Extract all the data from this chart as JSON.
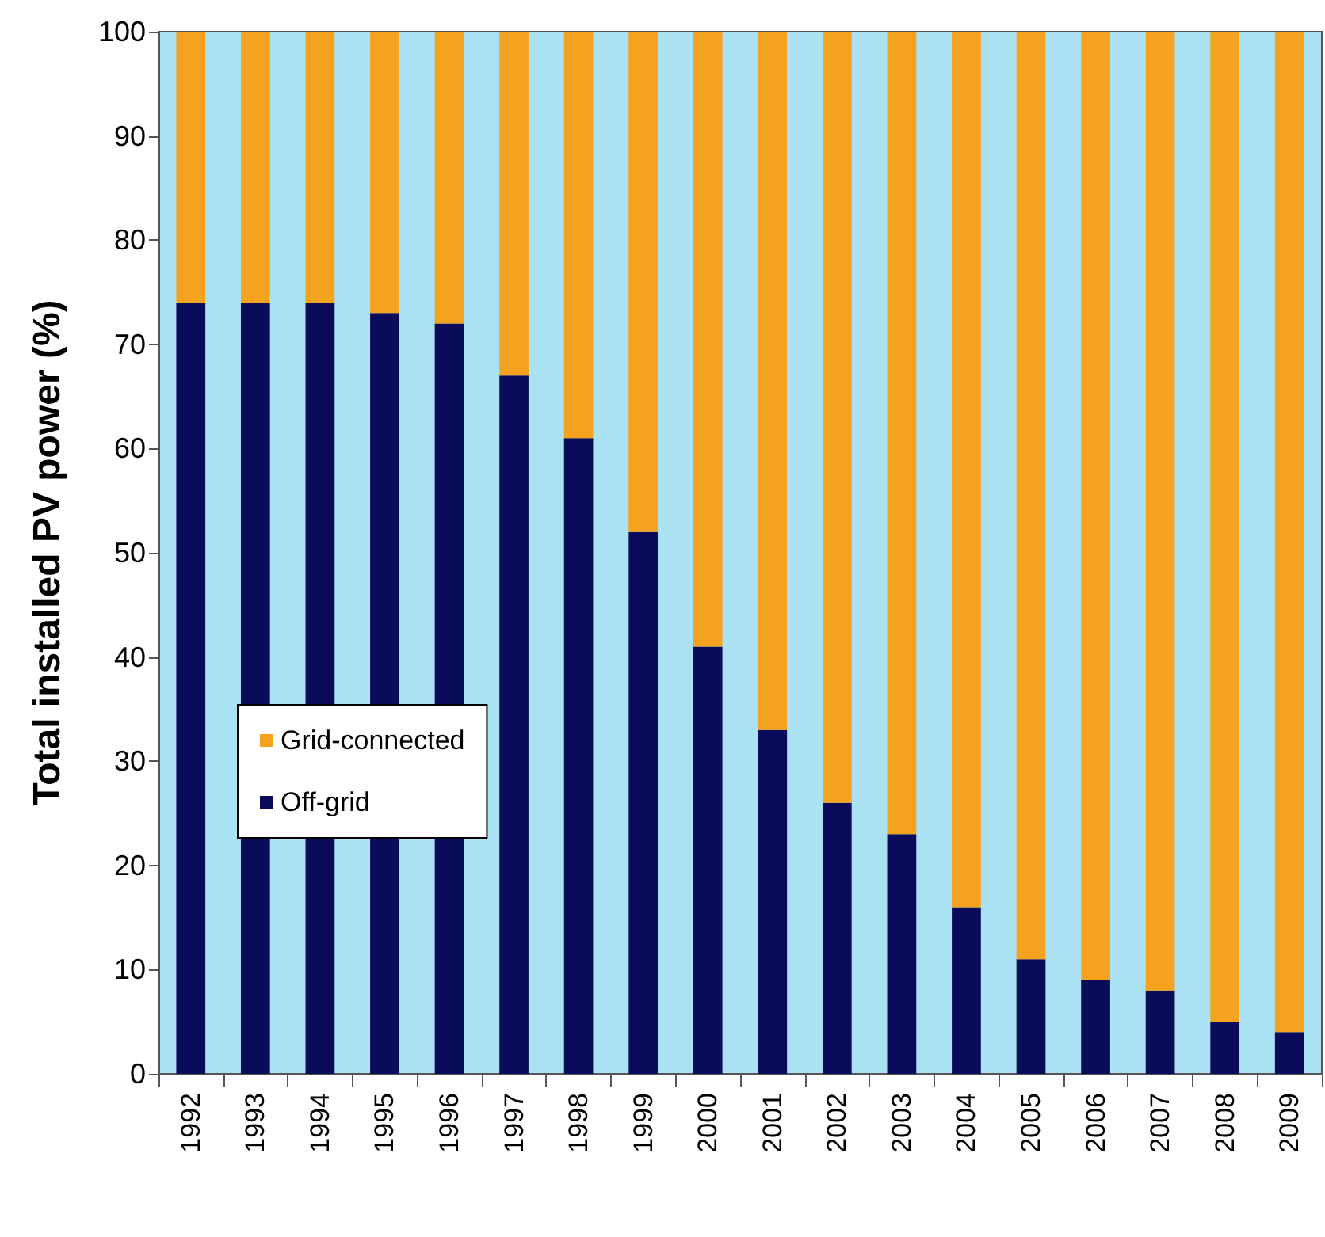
{
  "chart_data": {
    "type": "bar",
    "ylabel": "Total installed PV power (%)",
    "categories": [
      "1992",
      "1993",
      "1994",
      "1995",
      "1996",
      "1997",
      "1998",
      "1999",
      "2000",
      "2001",
      "2002",
      "2003",
      "2004",
      "2005",
      "2006",
      "2007",
      "2008",
      "2009"
    ],
    "stacked": true,
    "series": [
      {
        "name": "Off-grid",
        "color": "#0b0b5c",
        "values": [
          74,
          74,
          74,
          73,
          72,
          67,
          61,
          52,
          41,
          33,
          26,
          23,
          16,
          11,
          9,
          8,
          5,
          4
        ]
      },
      {
        "name": "Grid-connected",
        "color": "#f5a21e",
        "values": [
          26,
          26,
          26,
          27,
          28,
          33,
          39,
          48,
          59,
          67,
          74,
          77,
          84,
          89,
          91,
          92,
          95,
          96
        ]
      }
    ],
    "ylim": [
      0,
      100
    ],
    "yticks": [
      0,
      10,
      20,
      30,
      40,
      50,
      60,
      70,
      80,
      90,
      100
    ],
    "grid": false,
    "legend": "left"
  }
}
